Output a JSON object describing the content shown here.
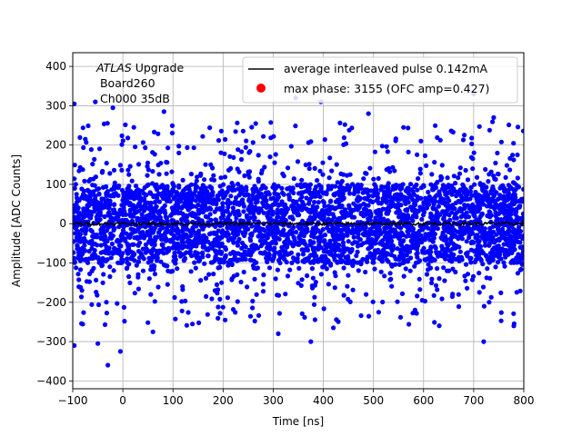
{
  "chart_data": {
    "type": "scatter",
    "xlabel": "Time [ns]",
    "ylabel": "Amplitude [ADC Counts]",
    "xlim": [
      -100,
      800
    ],
    "ylim": [
      -420,
      435
    ],
    "xticks": [
      -100,
      0,
      100,
      200,
      300,
      400,
      500,
      600,
      700,
      800
    ],
    "yticks": [
      -400,
      -300,
      -200,
      -100,
      0,
      100,
      200,
      300,
      400
    ],
    "grid": true,
    "legend_position": "upper-right",
    "annotation": {
      "italic": "ATLAS",
      "line1_rest": " Upgrade",
      "line2": " Board260",
      "line3": " Ch000 35dB"
    },
    "series": [
      {
        "name": "average interleaved pulse 0.142mA",
        "kind": "line",
        "color": "#000000",
        "x_range": [
          -100,
          800
        ],
        "y_level": 0,
        "y_jitter": 4
      },
      {
        "name": "max phase: 3155 (OFC amp=0.427)",
        "kind": "scatter",
        "color": "#0000ff",
        "legend_color": "#ff0000",
        "x_range": [
          -100,
          800
        ],
        "core_band": [
          -100,
          100
        ],
        "outliers": [
          {
            "x": -97,
            "y": 305
          },
          {
            "x": -55,
            "y": 310
          },
          {
            "x": -20,
            "y": 295
          },
          {
            "x": 82,
            "y": 285
          },
          {
            "x": 345,
            "y": 320
          },
          {
            "x": 395,
            "y": 310
          },
          {
            "x": 490,
            "y": 280
          },
          {
            "x": 560,
            "y": 245
          },
          {
            "x": 700,
            "y": 330
          },
          {
            "x": 740,
            "y": 270
          },
          {
            "x": -97,
            "y": -310
          },
          {
            "x": -50,
            "y": -305
          },
          {
            "x": -30,
            "y": -360
          },
          {
            "x": -5,
            "y": -325
          },
          {
            "x": 60,
            "y": -275
          },
          {
            "x": 310,
            "y": -280
          },
          {
            "x": 375,
            "y": -300
          },
          {
            "x": 720,
            "y": -300
          },
          {
            "x": 780,
            "y": -260
          },
          {
            "x": 420,
            "y": -265
          }
        ]
      }
    ]
  }
}
